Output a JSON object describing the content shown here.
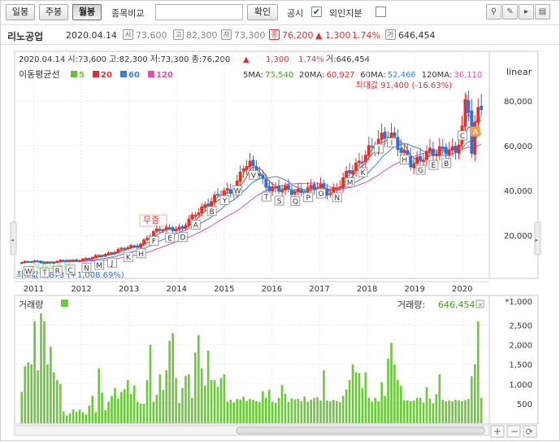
{
  "toolbar": {
    "daily_label": "일봉",
    "weekly_label": "주봉",
    "monthly_label": "월봉",
    "compare_label": "종목비교",
    "compare_placeholder": "",
    "confirm_label": "확인",
    "disclosure_label": "공시",
    "disclosure_checked": "✔",
    "foreign_label": "외인지분",
    "icons": [
      "pin-icon",
      "pencil-icon",
      "cursor-icon",
      "settings-icon"
    ]
  },
  "info": {
    "name": "리노공업",
    "date": "2020.04.14",
    "open_icon": "시",
    "open": "73,600",
    "high_icon": "고",
    "high": "82,300",
    "low_icon": "저",
    "low": "73,300",
    "close_icon": "종",
    "close": "76,200",
    "change": "▲ 1,300",
    "change_pct": "1.74%",
    "volume_icon": "거",
    "volume": "646,454"
  },
  "chart_header": {
    "ohlc_line": "2020.04.14 시:73,600 고:82,300 저:73,300 종:76,200",
    "change_arrow": "▲",
    "change": "1,300",
    "change_pct": "1.74%",
    "volume_text": "거:646,454",
    "scale_label": "linear",
    "ma_title": "이동평균선",
    "ma_legend": [
      {
        "label": "5",
        "color": "#6abf3a"
      },
      {
        "label": "20",
        "color": "#e03030"
      },
      {
        "label": "60",
        "color": "#3a7fd8"
      },
      {
        "label": "120",
        "color": "#e64db4"
      }
    ],
    "ma_values": [
      {
        "label": "5MA:",
        "value": "75,540",
        "color": "#3f9f1a"
      },
      {
        "label": "20MA:",
        "value": "60,927",
        "color": "#e03030"
      },
      {
        "label": "60MA:",
        "value": "52,466",
        "color": "#3a7fd8"
      },
      {
        "label": "120MA:",
        "value": "36,110",
        "color": "#e64db4"
      }
    ],
    "max_label": "최대값 91,400 (-16.63%)",
    "min_label": "최소값 6,873 (+1,008.69%)",
    "brand_watermark": "NAVER",
    "event_label": "무증"
  },
  "volume_header": {
    "title": "거래량",
    "value_label": "거래량:",
    "value": "646,454",
    "unit": "*1,000"
  },
  "colors": {
    "up": "#e03030",
    "down": "#2f6fd8",
    "volume": "#6cc93c"
  },
  "chart_data": {
    "type": "candlestick",
    "x_ticks": [
      "2011",
      "2012",
      "2013",
      "2014",
      "2015",
      "2016",
      "2017",
      "2018",
      "2019",
      "2020"
    ],
    "y_ticks": [
      20000,
      40000,
      60000,
      80000
    ],
    "y_tick_labels": [
      "20,000",
      "40,000",
      "60,000",
      "80,000"
    ],
    "volume_ticks": [
      500,
      1000,
      1500,
      2000,
      2500
    ],
    "volume_tick_labels": [
      "500",
      "1,000",
      "1,500",
      "2,000",
      "2,500"
    ],
    "ylim": [
      0,
      95000
    ],
    "x_range": [
      2010.6,
      2020.55
    ],
    "volume_ylim": [
      0,
      2800
    ],
    "price_anchors": [
      [
        2010.75,
        7800
      ],
      [
        2011.0,
        8300
      ],
      [
        2011.3,
        7800
      ],
      [
        2011.6,
        8500
      ],
      [
        2011.9,
        8900
      ],
      [
        2012.2,
        9800
      ],
      [
        2012.5,
        11500
      ],
      [
        2012.8,
        13500
      ],
      [
        2013.0,
        14500
      ],
      [
        2013.2,
        15500
      ],
      [
        2013.4,
        19500
      ],
      [
        2013.6,
        22000
      ],
      [
        2013.9,
        23500
      ],
      [
        2014.1,
        23000
      ],
      [
        2014.3,
        27000
      ],
      [
        2014.6,
        34000
      ],
      [
        2014.9,
        38000
      ],
      [
        2015.2,
        40000
      ],
      [
        2015.4,
        52000
      ],
      [
        2015.6,
        50000
      ],
      [
        2015.85,
        43000
      ],
      [
        2016.1,
        41000
      ],
      [
        2016.4,
        39000
      ],
      [
        2016.7,
        41000
      ],
      [
        2017.0,
        41000
      ],
      [
        2017.2,
        39000
      ],
      [
        2017.5,
        45000
      ],
      [
        2017.8,
        51000
      ],
      [
        2018.0,
        59000
      ],
      [
        2018.3,
        62000
      ],
      [
        2018.55,
        65000
      ],
      [
        2018.75,
        58000
      ],
      [
        2018.95,
        50000
      ],
      [
        2019.1,
        53000
      ],
      [
        2019.3,
        59000
      ],
      [
        2019.6,
        57000
      ],
      [
        2019.85,
        57000
      ],
      [
        2020.0,
        70000
      ],
      [
        2020.1,
        86000
      ],
      [
        2020.2,
        57000
      ],
      [
        2020.3,
        73000
      ],
      [
        2020.4,
        76200
      ]
    ],
    "ma_series": [
      {
        "name": "20",
        "color": "#e03030",
        "lag": 0.35
      },
      {
        "name": "60",
        "color": "#3a7fd8",
        "lag": 1.0
      },
      {
        "name": "120",
        "color": "#e64db4",
        "lag": 2.0
      }
    ],
    "volume_values": [
      800,
      1450,
      1550,
      1500,
      2600,
      1350,
      2800,
      2600,
      1500,
      1950,
      1300,
      1100,
      1000,
      300,
      200,
      250,
      350,
      300,
      350,
      280,
      230,
      450,
      700,
      280,
      1400,
      780,
      330,
      550,
      700,
      900,
      620,
      800,
      870,
      1100,
      750,
      960,
      550,
      500,
      500,
      1100,
      2000,
      550,
      730,
      1250,
      850,
      1350,
      2100,
      2300,
      1150,
      520,
      900,
      1200,
      1250,
      650,
      1800,
      2250,
      1400,
      960,
      1850,
      1100,
      1100,
      930,
      1150,
      1250,
      550,
      600,
      530,
      620,
      600,
      680,
      570,
      620,
      600,
      560,
      540,
      820,
      650,
      860,
      550,
      520,
      650,
      980,
      750,
      540,
      640,
      610,
      620,
      560,
      680,
      550,
      600,
      650,
      660,
      580,
      1350,
      580,
      560,
      600,
      570,
      540,
      700,
      860,
      1100,
      1500,
      1300,
      1280,
      900,
      1300,
      650,
      550,
      650,
      560,
      1050,
      700,
      1650,
      2050,
      1500,
      1100,
      960,
      580,
      580,
      560,
      580,
      650,
      650,
      530,
      920,
      630,
      510,
      740,
      1250,
      600,
      560,
      580,
      560,
      600,
      580,
      560,
      590,
      620,
      1200,
      1500,
      2600,
      646
    ],
    "markers": [
      "W",
      "T",
      "R",
      "C",
      "N",
      "M",
      "J",
      "K",
      "H",
      "F",
      "E",
      "D",
      "A",
      "B",
      "Y",
      "W",
      "V",
      "T",
      "S",
      "Q",
      "P",
      "O",
      "N",
      "M",
      "K",
      "J",
      "I",
      "H",
      "G",
      "E",
      "B",
      "C",
      "A"
    ]
  }
}
